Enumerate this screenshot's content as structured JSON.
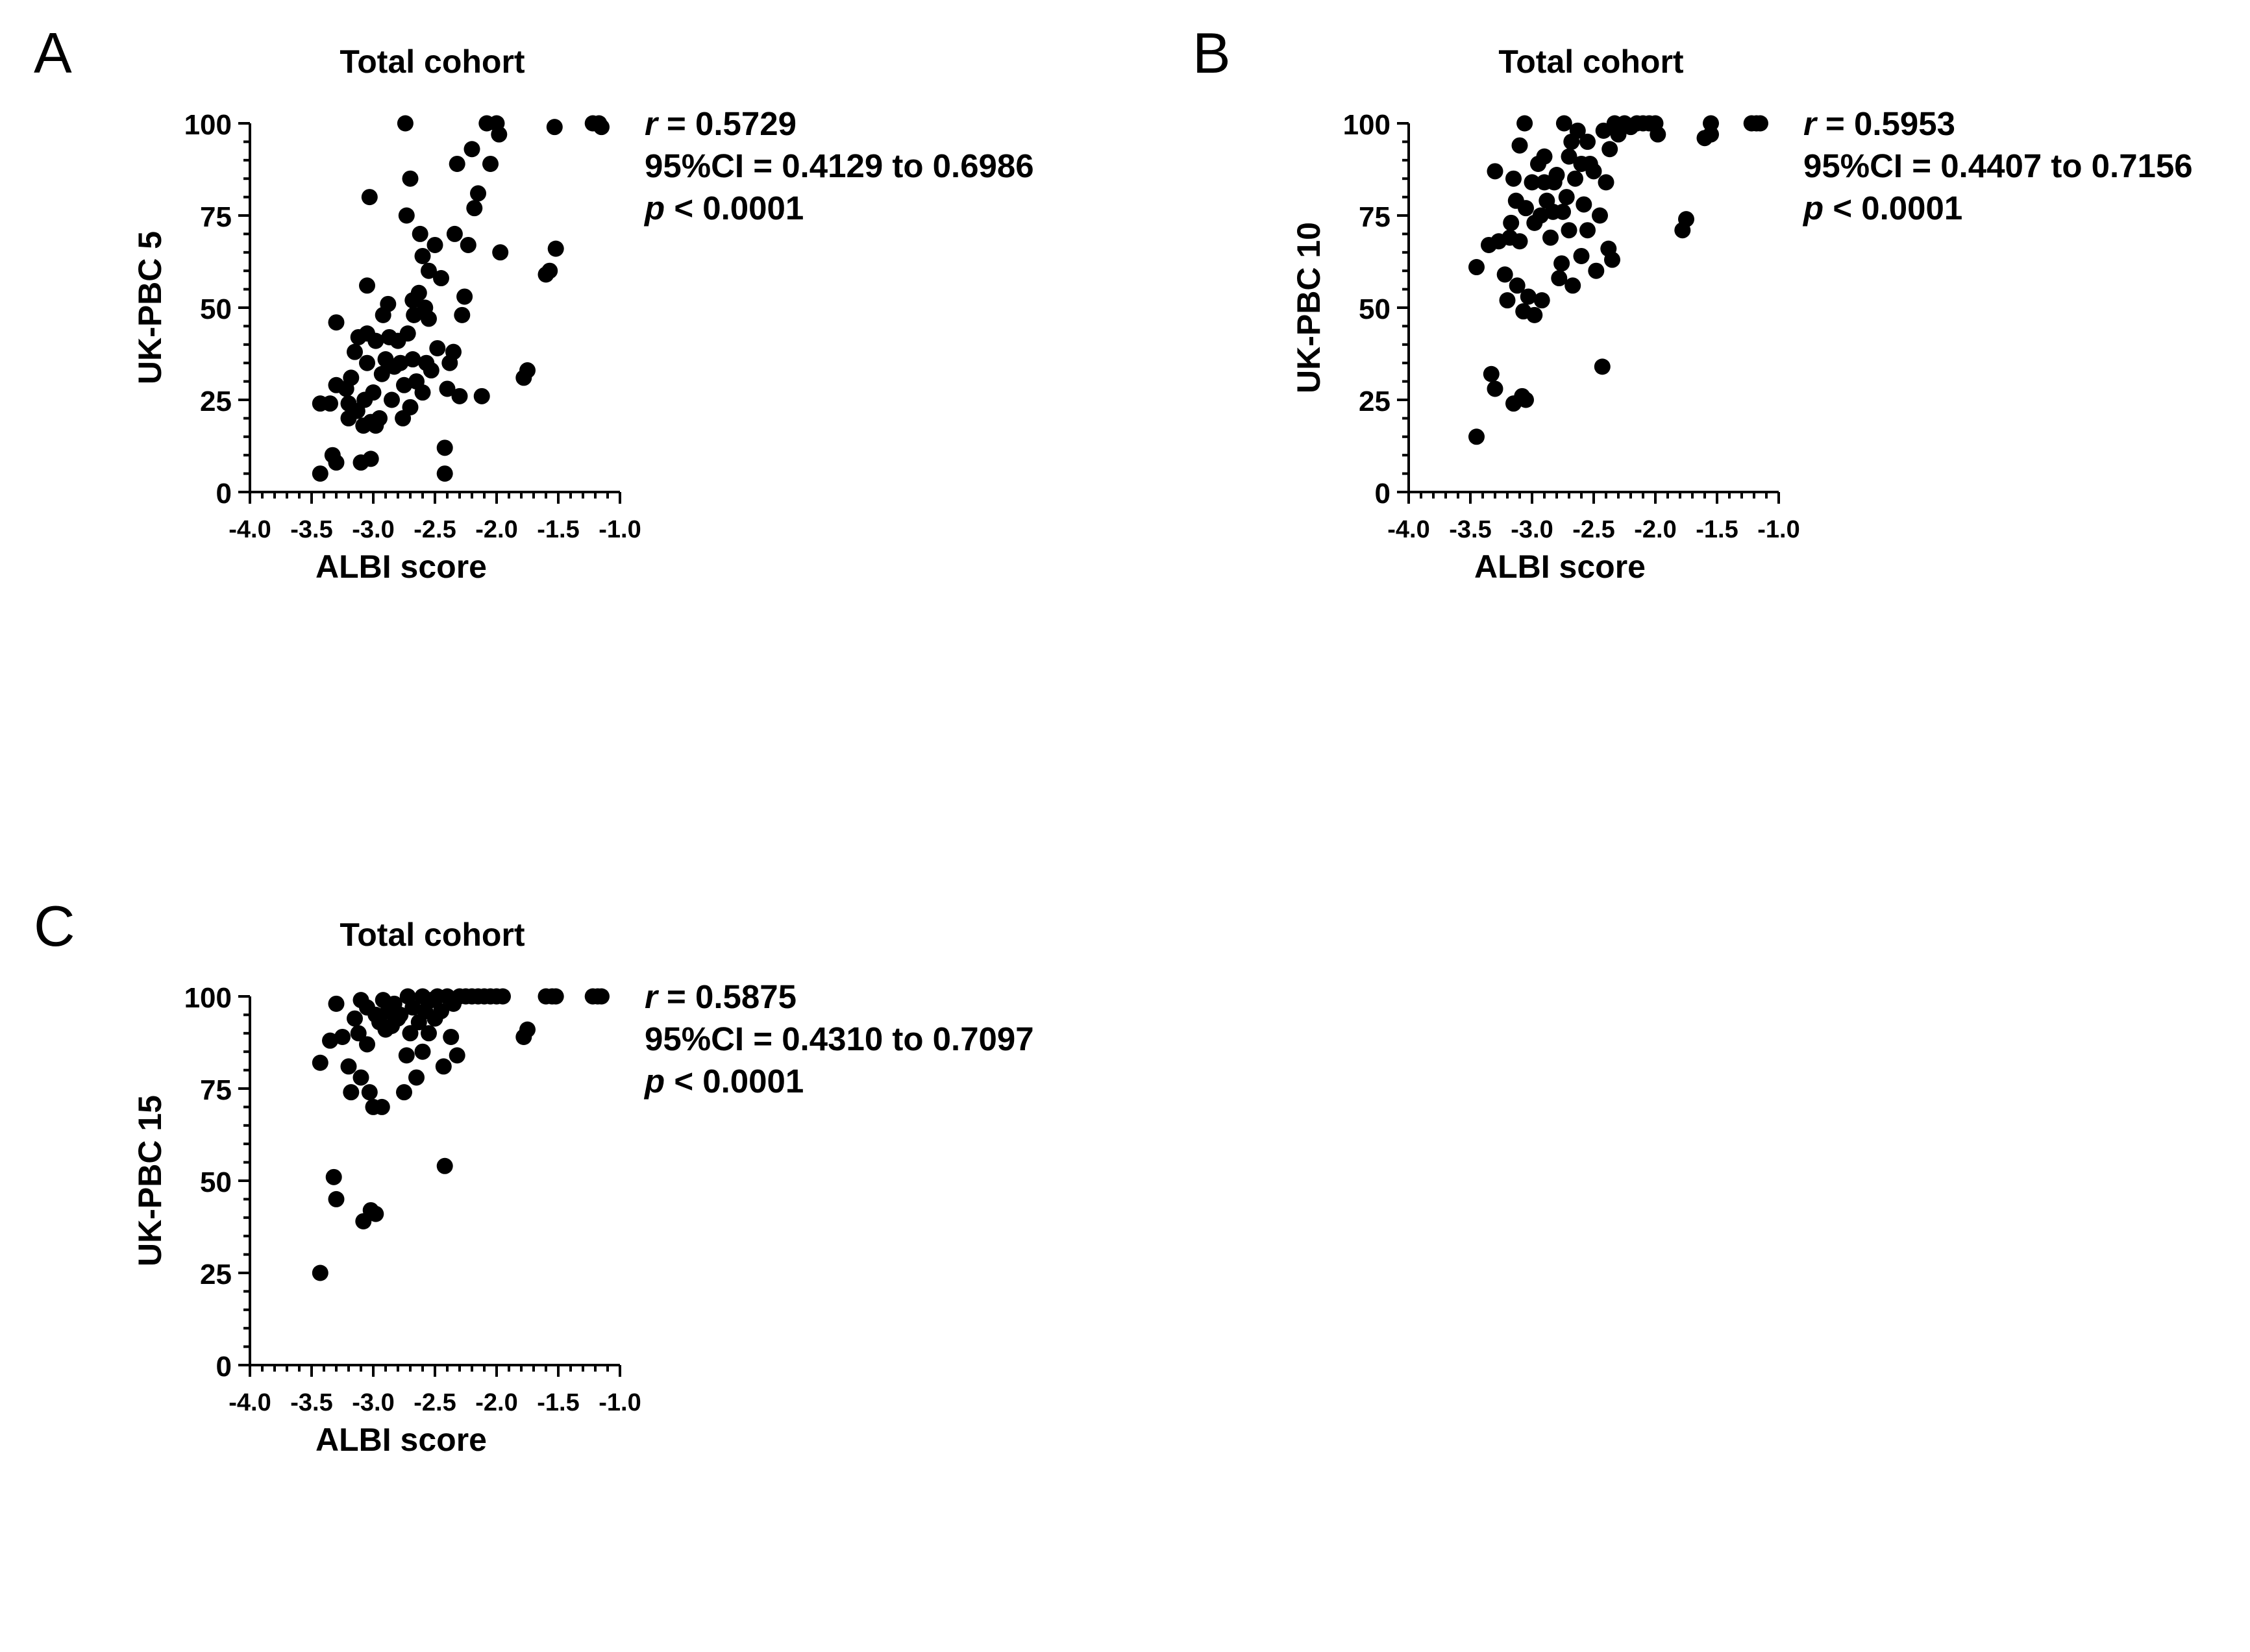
{
  "chart_data": [
    {
      "type": "scatter",
      "panel_label": "A",
      "title": "Total cohort",
      "xlabel": "ALBI score",
      "ylabel": "UK-PBC 5",
      "xlim": [
        -4.0,
        -1.0
      ],
      "ylim": [
        0,
        100
      ],
      "xticks": [
        "-4.0",
        "-3.5",
        "-3.0",
        "-2.5",
        "-2.0",
        "-1.5",
        "-1.0"
      ],
      "yticks": [
        "0",
        "25",
        "50",
        "75",
        "100"
      ],
      "grid": false,
      "stats": {
        "r_label": "r",
        "r_value": " = 0.5729",
        "ci": "95%CI = 0.4129 to 0.6986",
        "p_label": "p",
        "p_value": " < 0.0001"
      },
      "points": [
        [
          -3.43,
          5
        ],
        [
          -3.43,
          24
        ],
        [
          -3.35,
          24
        ],
        [
          -3.33,
          10
        ],
        [
          -3.3,
          8
        ],
        [
          -3.3,
          29
        ],
        [
          -3.3,
          46
        ],
        [
          -3.22,
          28
        ],
        [
          -3.2,
          20
        ],
        [
          -3.2,
          24
        ],
        [
          -3.18,
          31
        ],
        [
          -3.15,
          38
        ],
        [
          -3.13,
          22
        ],
        [
          -3.12,
          42
        ],
        [
          -3.1,
          8
        ],
        [
          -3.08,
          18
        ],
        [
          -3.07,
          25
        ],
        [
          -3.05,
          35
        ],
        [
          -3.05,
          43
        ],
        [
          -3.05,
          56
        ],
        [
          -3.03,
          80
        ],
        [
          -3.02,
          9
        ],
        [
          -3.02,
          19
        ],
        [
          -3.0,
          27
        ],
        [
          -2.98,
          18
        ],
        [
          -2.98,
          41
        ],
        [
          -2.95,
          20
        ],
        [
          -2.93,
          32
        ],
        [
          -2.92,
          48
        ],
        [
          -2.9,
          36
        ],
        [
          -2.88,
          51
        ],
        [
          -2.87,
          42
        ],
        [
          -2.85,
          25
        ],
        [
          -2.83,
          34
        ],
        [
          -2.8,
          41
        ],
        [
          -2.78,
          35
        ],
        [
          -2.76,
          20
        ],
        [
          -2.75,
          29
        ],
        [
          -2.74,
          100
        ],
        [
          -2.73,
          75
        ],
        [
          -2.72,
          43
        ],
        [
          -2.7,
          85
        ],
        [
          -2.7,
          23
        ],
        [
          -2.68,
          52
        ],
        [
          -2.68,
          36
        ],
        [
          -2.67,
          48
        ],
        [
          -2.65,
          30
        ],
        [
          -2.63,
          54
        ],
        [
          -2.62,
          70
        ],
        [
          -2.6,
          64
        ],
        [
          -2.6,
          27
        ],
        [
          -2.58,
          50
        ],
        [
          -2.57,
          35
        ],
        [
          -2.55,
          60
        ],
        [
          -2.55,
          47
        ],
        [
          -2.53,
          33
        ],
        [
          -2.5,
          67
        ],
        [
          -2.48,
          39
        ],
        [
          -2.45,
          58
        ],
        [
          -2.42,
          12
        ],
        [
          -2.42,
          5
        ],
        [
          -2.4,
          28
        ],
        [
          -2.38,
          35
        ],
        [
          -2.35,
          38
        ],
        [
          -2.34,
          70
        ],
        [
          -2.32,
          89
        ],
        [
          -2.3,
          26
        ],
        [
          -2.28,
          48
        ],
        [
          -2.26,
          53
        ],
        [
          -2.23,
          67
        ],
        [
          -2.2,
          93
        ],
        [
          -2.18,
          77
        ],
        [
          -2.15,
          81
        ],
        [
          -2.12,
          26
        ],
        [
          -2.08,
          100
        ],
        [
          -2.05,
          89
        ],
        [
          -2.0,
          100
        ],
        [
          -1.98,
          97
        ],
        [
          -1.97,
          65
        ],
        [
          -1.78,
          31
        ],
        [
          -1.75,
          33
        ],
        [
          -1.6,
          59
        ],
        [
          -1.57,
          60
        ],
        [
          -1.52,
          66
        ],
        [
          -1.53,
          99
        ],
        [
          -1.22,
          100
        ],
        [
          -1.17,
          100
        ],
        [
          -1.15,
          99
        ]
      ]
    },
    {
      "type": "scatter",
      "panel_label": "B",
      "title": "Total cohort",
      "xlabel": "ALBI score",
      "ylabel": "UK-PBC 10",
      "xlim": [
        -4.0,
        -1.0
      ],
      "ylim": [
        0,
        100
      ],
      "xticks": [
        "-4.0",
        "-3.5",
        "-3.0",
        "-2.5",
        "-2.0",
        "-1.5",
        "-1.0"
      ],
      "yticks": [
        "0",
        "25",
        "50",
        "75",
        "100"
      ],
      "grid": false,
      "stats": {
        "r_label": "r",
        "r_value": " = 0.5953",
        "ci": "95%CI = 0.4407 to 0.7156",
        "p_label": "p",
        "p_value": " < 0.0001"
      },
      "points": [
        [
          -3.45,
          15
        ],
        [
          -3.45,
          61
        ],
        [
          -3.35,
          67
        ],
        [
          -3.33,
          32
        ],
        [
          -3.3,
          28
        ],
        [
          -3.3,
          87
        ],
        [
          -3.27,
          68
        ],
        [
          -3.22,
          59
        ],
        [
          -3.2,
          52
        ],
        [
          -3.18,
          69
        ],
        [
          -3.17,
          73
        ],
        [
          -3.15,
          85
        ],
        [
          -3.15,
          24
        ],
        [
          -3.13,
          79
        ],
        [
          -3.12,
          56
        ],
        [
          -3.1,
          94
        ],
        [
          -3.1,
          68
        ],
        [
          -3.08,
          26
        ],
        [
          -3.07,
          49
        ],
        [
          -3.06,
          100
        ],
        [
          -3.05,
          77
        ],
        [
          -3.05,
          25
        ],
        [
          -3.03,
          53
        ],
        [
          -3.0,
          84
        ],
        [
          -2.98,
          48
        ],
        [
          -2.98,
          73
        ],
        [
          -2.95,
          89
        ],
        [
          -2.93,
          75
        ],
        [
          -2.92,
          52
        ],
        [
          -2.9,
          91
        ],
        [
          -2.9,
          84
        ],
        [
          -2.88,
          79
        ],
        [
          -2.85,
          69
        ],
        [
          -2.83,
          76
        ],
        [
          -2.82,
          84
        ],
        [
          -2.8,
          86
        ],
        [
          -2.78,
          58
        ],
        [
          -2.76,
          62
        ],
        [
          -2.75,
          76
        ],
        [
          -2.74,
          100
        ],
        [
          -2.72,
          80
        ],
        [
          -2.7,
          91
        ],
        [
          -2.7,
          71
        ],
        [
          -2.68,
          95
        ],
        [
          -2.67,
          56
        ],
        [
          -2.65,
          85
        ],
        [
          -2.63,
          98
        ],
        [
          -2.6,
          89
        ],
        [
          -2.6,
          64
        ],
        [
          -2.58,
          78
        ],
        [
          -2.55,
          95
        ],
        [
          -2.55,
          71
        ],
        [
          -2.53,
          89
        ],
        [
          -2.5,
          87
        ],
        [
          -2.48,
          60
        ],
        [
          -2.45,
          75
        ],
        [
          -2.43,
          34
        ],
        [
          -2.42,
          98
        ],
        [
          -2.4,
          84
        ],
        [
          -2.38,
          66
        ],
        [
          -2.37,
          93
        ],
        [
          -2.35,
          63
        ],
        [
          -2.33,
          100
        ],
        [
          -2.3,
          97
        ],
        [
          -2.25,
          100
        ],
        [
          -2.2,
          99
        ],
        [
          -2.15,
          100
        ],
        [
          -2.1,
          100
        ],
        [
          -2.05,
          100
        ],
        [
          -2.0,
          100
        ],
        [
          -1.98,
          97
        ],
        [
          -1.78,
          71
        ],
        [
          -1.75,
          74
        ],
        [
          -1.6,
          96
        ],
        [
          -1.55,
          97
        ],
        [
          -1.55,
          100
        ],
        [
          -1.22,
          100
        ],
        [
          -1.18,
          100
        ],
        [
          -1.15,
          100
        ]
      ]
    },
    {
      "type": "scatter",
      "panel_label": "C",
      "title": "Total cohort",
      "xlabel": "ALBI score",
      "ylabel": "UK-PBC 15",
      "xlim": [
        -4.0,
        -1.0
      ],
      "ylim": [
        0,
        100
      ],
      "xticks": [
        "-4.0",
        "-3.5",
        "-3.0",
        "-2.5",
        "-2.0",
        "-1.5",
        "-1.0"
      ],
      "yticks": [
        "0",
        "25",
        "50",
        "75",
        "100"
      ],
      "grid": false,
      "stats": {
        "r_label": "r",
        "r_value": " = 0.5875",
        "ci": "95%CI = 0.4310 to 0.7097",
        "p_label": "p",
        "p_value": " < 0.0001"
      },
      "points": [
        [
          -3.43,
          25
        ],
        [
          -3.43,
          82
        ],
        [
          -3.35,
          88
        ],
        [
          -3.32,
          51
        ],
        [
          -3.3,
          45
        ],
        [
          -3.3,
          98
        ],
        [
          -3.25,
          89
        ],
        [
          -3.2,
          81
        ],
        [
          -3.18,
          74
        ],
        [
          -3.15,
          94
        ],
        [
          -3.12,
          90
        ],
        [
          -3.1,
          78
        ],
        [
          -3.1,
          99
        ],
        [
          -3.08,
          39
        ],
        [
          -3.05,
          87
        ],
        [
          -3.05,
          97
        ],
        [
          -3.03,
          74
        ],
        [
          -3.02,
          42
        ],
        [
          -3.0,
          70
        ],
        [
          -2.98,
          41
        ],
        [
          -2.98,
          95
        ],
        [
          -2.95,
          93
        ],
        [
          -2.93,
          70
        ],
        [
          -2.92,
          99
        ],
        [
          -2.9,
          91
        ],
        [
          -2.88,
          96
        ],
        [
          -2.85,
          92
        ],
        [
          -2.83,
          98
        ],
        [
          -2.8,
          94
        ],
        [
          -2.78,
          95
        ],
        [
          -2.75,
          74
        ],
        [
          -2.73,
          84
        ],
        [
          -2.72,
          100
        ],
        [
          -2.7,
          90
        ],
        [
          -2.68,
          97
        ],
        [
          -2.65,
          78
        ],
        [
          -2.63,
          93
        ],
        [
          -2.6,
          100
        ],
        [
          -2.6,
          85
        ],
        [
          -2.58,
          96
        ],
        [
          -2.55,
          90
        ],
        [
          -2.53,
          99
        ],
        [
          -2.5,
          94
        ],
        [
          -2.48,
          100
        ],
        [
          -2.45,
          96
        ],
        [
          -2.43,
          81
        ],
        [
          -2.42,
          54
        ],
        [
          -2.4,
          100
        ],
        [
          -2.37,
          89
        ],
        [
          -2.35,
          98
        ],
        [
          -2.32,
          84
        ],
        [
          -2.3,
          100
        ],
        [
          -2.25,
          100
        ],
        [
          -2.2,
          100
        ],
        [
          -2.15,
          100
        ],
        [
          -2.1,
          100
        ],
        [
          -2.05,
          100
        ],
        [
          -2.0,
          100
        ],
        [
          -1.95,
          100
        ],
        [
          -1.78,
          89
        ],
        [
          -1.75,
          91
        ],
        [
          -1.6,
          100
        ],
        [
          -1.55,
          100
        ],
        [
          -1.52,
          100
        ],
        [
          -1.22,
          100
        ],
        [
          -1.18,
          100
        ],
        [
          -1.15,
          100
        ]
      ]
    }
  ]
}
